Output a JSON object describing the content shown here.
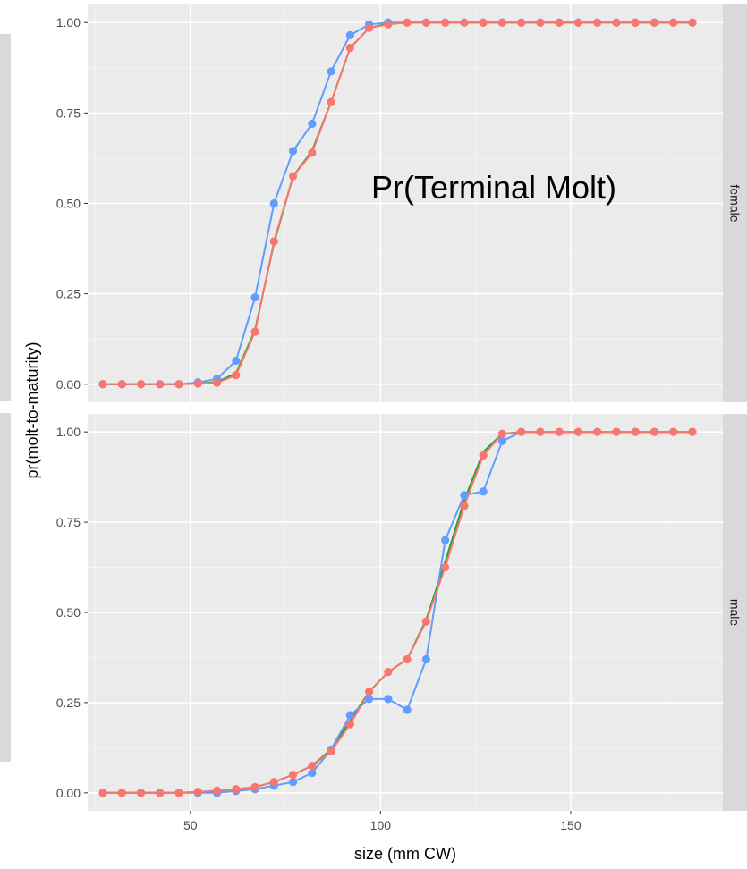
{
  "chart_data": {
    "type": "line",
    "xlabel": "size (mm CW)",
    "ylabel": "pr(molt-to-maturity)",
    "annotation": "Pr(Terminal Molt)",
    "xlim": [
      23,
      190
    ],
    "ylim": [
      -0.05,
      1.05
    ],
    "x_ticks": [
      50,
      100,
      150
    ],
    "y_ticks": [
      "0.00",
      "0.25",
      "0.50",
      "0.75",
      "1.00"
    ],
    "grid": true,
    "colors": {
      "green": "#22a62f",
      "blue": "#619cff",
      "red": "#f8766d",
      "panel_bg": "#ebebeb",
      "strip_bg": "#d9d9d9"
    },
    "x": [
      27,
      32,
      37,
      42,
      47,
      52,
      57,
      62,
      67,
      72,
      77,
      82,
      87,
      92,
      97,
      102,
      107,
      112,
      117,
      122,
      127,
      132,
      137,
      142,
      147,
      152,
      157,
      162,
      167,
      172,
      177,
      182
    ],
    "panels": [
      {
        "strip": "female",
        "series": [
          {
            "color": "green",
            "values": [
              0,
              0,
              0,
              0,
              0,
              0.002,
              0.006,
              0.03,
              0.15,
              0.39,
              0.575,
              0.645,
              0.78,
              0.93,
              0.985,
              0.997,
              1,
              1,
              1,
              1,
              1,
              1,
              1,
              1,
              1,
              1,
              1,
              1,
              1,
              1,
              1,
              1
            ]
          },
          {
            "color": "blue",
            "values": [
              0,
              0,
              0,
              0,
              0,
              0.005,
              0.015,
              0.065,
              0.24,
              0.5,
              0.645,
              0.72,
              0.865,
              0.965,
              0.995,
              1,
              1,
              1,
              1,
              1,
              1,
              1,
              1,
              1,
              1,
              1,
              1,
              1,
              1,
              1,
              1,
              1
            ]
          },
          {
            "color": "red",
            "values": [
              0,
              0,
              0,
              0,
              0,
              0.002,
              0.004,
              0.025,
              0.145,
              0.395,
              0.575,
              0.64,
              0.78,
              0.93,
              0.985,
              0.995,
              1,
              1,
              1,
              1,
              1,
              1,
              1,
              1,
              1,
              1,
              1,
              1,
              1,
              1,
              1,
              1
            ]
          }
        ]
      },
      {
        "strip": "male",
        "series": [
          {
            "color": "green",
            "values": [
              0,
              0,
              0,
              0,
              0,
              0.002,
              0.005,
              0.01,
              0.016,
              0.03,
              0.05,
              0.075,
              0.12,
              0.2,
              0.28,
              0.335,
              0.37,
              0.48,
              0.64,
              0.81,
              0.945,
              0.995,
              1,
              1,
              1,
              1,
              1,
              1,
              1,
              1,
              1,
              1
            ]
          },
          {
            "color": "blue",
            "values": [
              0,
              0,
              0,
              0,
              0,
              0,
              0,
              0.005,
              0.01,
              0.02,
              0.03,
              0.055,
              0.12,
              0.215,
              0.26,
              0.26,
              0.23,
              0.37,
              0.7,
              0.825,
              0.835,
              0.975,
              1,
              1,
              1,
              1,
              1,
              1,
              1,
              1,
              1,
              1
            ]
          },
          {
            "color": "red",
            "values": [
              0,
              0,
              0,
              0,
              0,
              0.003,
              0.006,
              0.01,
              0.016,
              0.03,
              0.05,
              0.075,
              0.115,
              0.19,
              0.28,
              0.335,
              0.37,
              0.475,
              0.625,
              0.795,
              0.935,
              0.995,
              1,
              1,
              1,
              1,
              1,
              1,
              1,
              1,
              1,
              1
            ]
          }
        ]
      }
    ]
  }
}
